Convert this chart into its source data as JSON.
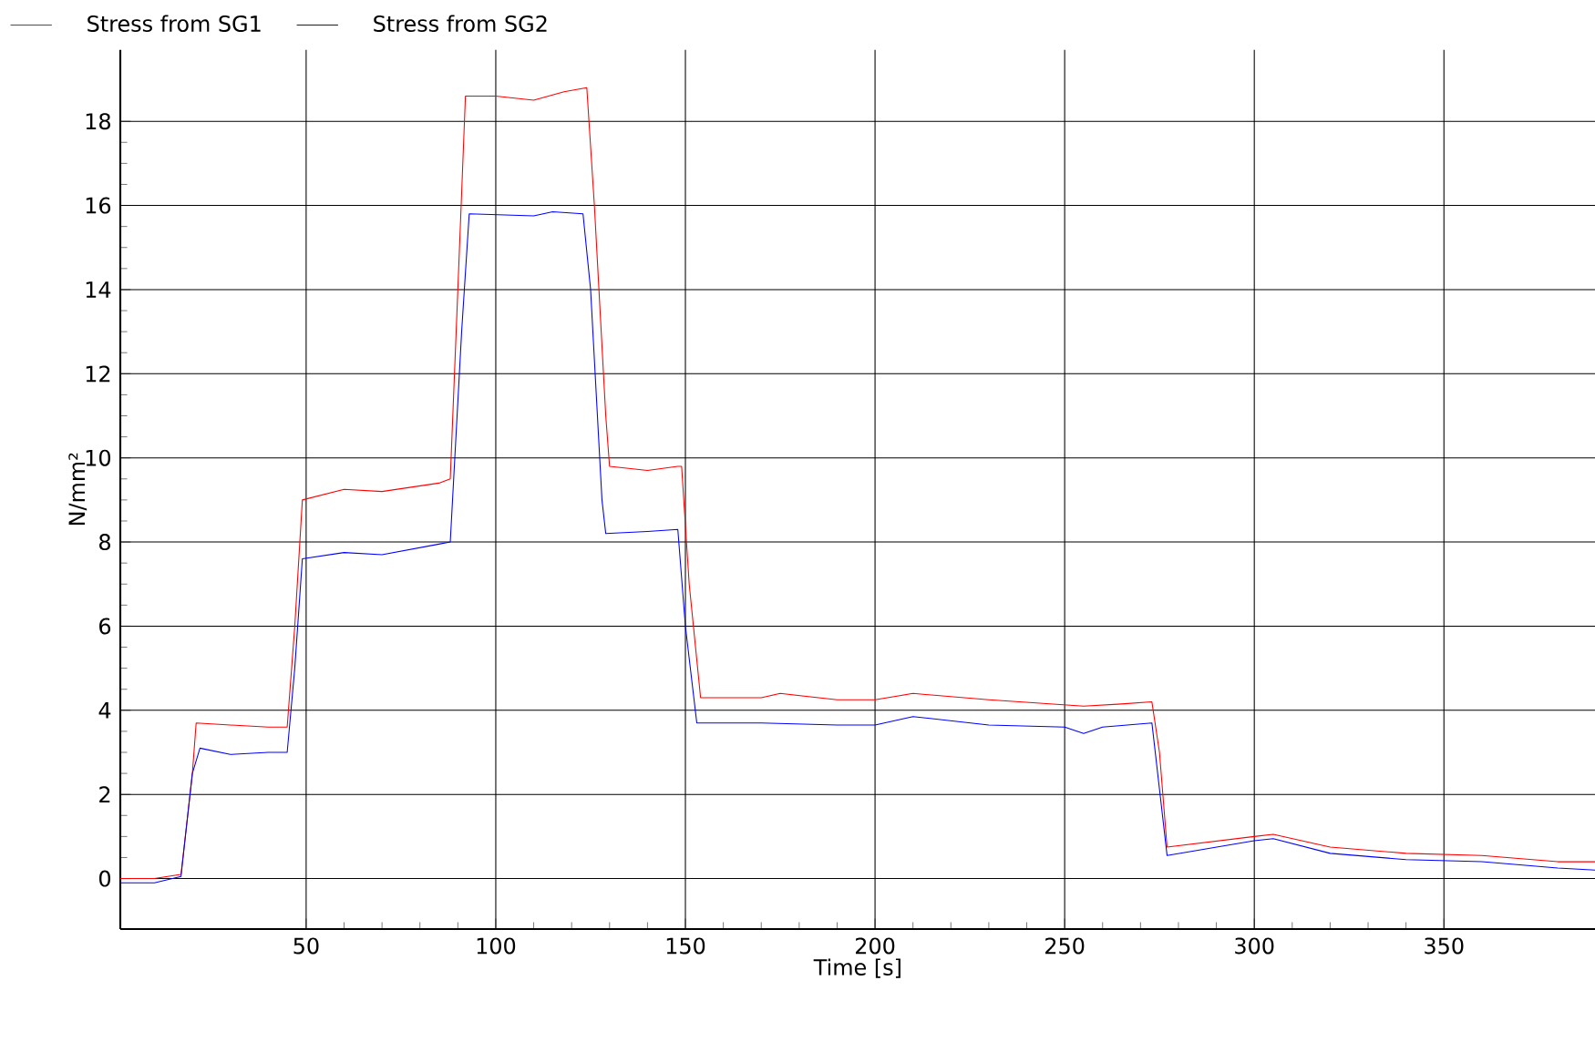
{
  "chart_data": {
    "type": "line",
    "xlabel": "Time  [s]",
    "ylabel": "N/mm²",
    "xlim": [
      1,
      390
    ],
    "ylim": [
      -1.2,
      19.7
    ],
    "xticks": [
      50,
      100,
      150,
      200,
      250,
      300,
      350
    ],
    "yticks": [
      0,
      2,
      4,
      6,
      8,
      10,
      12,
      14,
      16,
      18
    ],
    "grid": true,
    "legend": "top left",
    "marker": "none",
    "line_style": "solid",
    "series": [
      {
        "name": "Stress from SG1",
        "color": "#ff0000",
        "x": [
          1,
          10,
          17,
          20,
          21,
          30,
          40,
          45,
          47,
          49,
          60,
          70,
          85,
          88,
          90,
          92,
          100,
          110,
          118,
          124,
          126,
          129,
          130,
          140,
          148,
          149,
          151,
          154,
          170,
          175,
          190,
          200,
          210,
          230,
          255,
          265,
          273,
          275,
          277,
          300,
          305,
          320,
          340,
          360,
          380,
          390
        ],
        "values": [
          0,
          0,
          0.1,
          2.5,
          3.7,
          3.65,
          3.6,
          3.6,
          6,
          9,
          9.25,
          9.2,
          9.4,
          9.5,
          14,
          18.6,
          18.6,
          18.5,
          18.7,
          18.8,
          16,
          11,
          9.8,
          9.7,
          9.8,
          9.8,
          7,
          4.3,
          4.3,
          4.4,
          4.25,
          4.25,
          4.4,
          4.25,
          4.1,
          4.15,
          4.2,
          3,
          0.75,
          1.0,
          1.05,
          0.75,
          0.6,
          0.55,
          0.4,
          0.4
        ]
      },
      {
        "name": "Stress from SG2",
        "color": "#0000ff",
        "x": [
          1,
          10,
          17,
          20,
          22,
          30,
          40,
          45,
          47,
          49,
          60,
          70,
          85,
          88,
          91,
          93,
          110,
          115,
          123,
          125,
          128,
          129,
          140,
          148,
          150,
          153,
          170,
          190,
          200,
          210,
          230,
          250,
          255,
          260,
          273,
          277,
          300,
          305,
          320,
          340,
          360,
          380,
          390
        ],
        "values": [
          -0.1,
          -0.1,
          0.05,
          2.5,
          3.1,
          2.95,
          3.0,
          3.0,
          5,
          7.6,
          7.75,
          7.7,
          7.95,
          8.0,
          13,
          15.8,
          15.75,
          15.85,
          15.8,
          14,
          9,
          8.2,
          8.25,
          8.3,
          6,
          3.7,
          3.7,
          3.65,
          3.65,
          3.85,
          3.65,
          3.6,
          3.45,
          3.6,
          3.7,
          0.55,
          0.9,
          0.95,
          0.6,
          0.45,
          0.4,
          0.25,
          0.2
        ]
      }
    ]
  }
}
